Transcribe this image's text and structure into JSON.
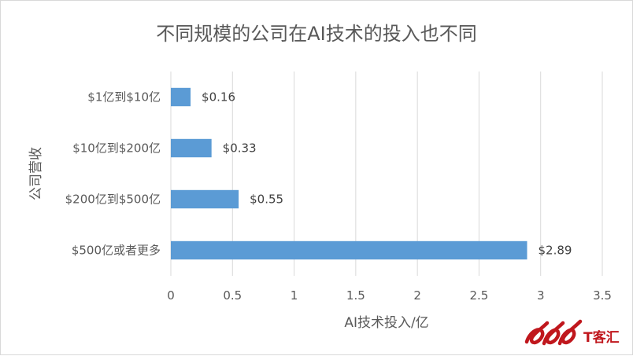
{
  "chart_data": {
    "type": "bar",
    "orientation": "horizontal",
    "title": "不同规模的公司在AI技术的投入也不同",
    "xlabel": "AI技术投入/亿",
    "ylabel": "公司营收",
    "categories": [
      "$1亿到$10亿",
      "$10亿到$200亿",
      "$200亿到$500亿",
      "$500亿或者更多"
    ],
    "values": [
      0.16,
      0.33,
      0.55,
      2.89
    ],
    "data_labels": [
      "$0.16",
      "$0.33",
      "$0.55",
      "$2.89"
    ],
    "xlim": [
      0,
      3.5
    ],
    "x_ticks": [
      "0",
      "0.5",
      "1",
      "1.5",
      "2",
      "2.5",
      "3",
      "3.5"
    ],
    "grid": true,
    "bar_color": "#5b9bd5",
    "legend": "none"
  },
  "watermark": {
    "text": "T客汇",
    "logo_color": "#c0171d"
  }
}
